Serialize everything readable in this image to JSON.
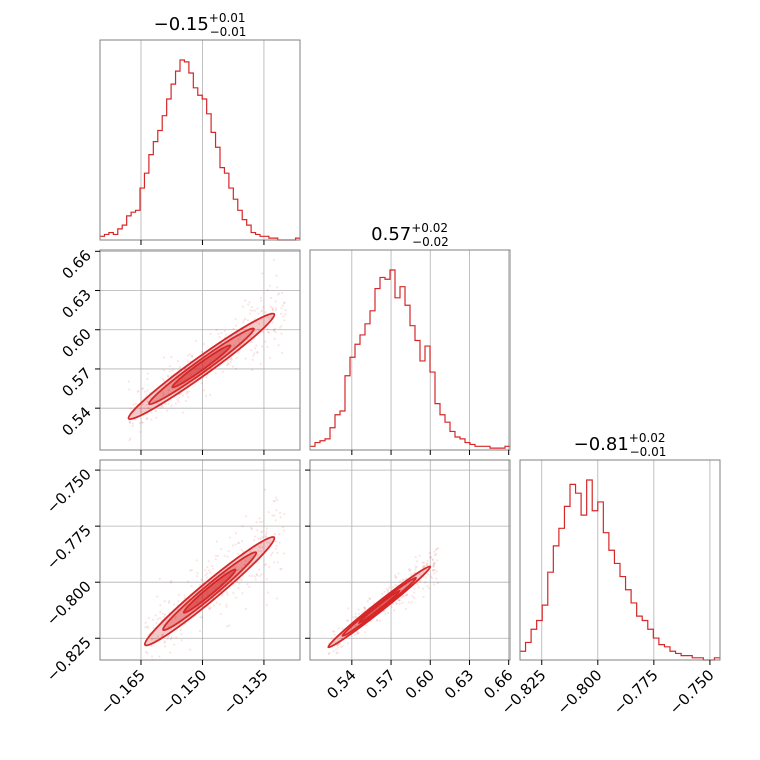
{
  "chart_data": {
    "type": "corner",
    "color": "#d62728",
    "grid": true,
    "parameters": [
      {
        "title_main": "−0.15",
        "title_sup": "+0.01",
        "title_sub": "−0.01",
        "range": [
          -0.175,
          -0.1262
        ],
        "ticks": [
          -0.165,
          -0.15,
          -0.135
        ],
        "tick_labels": [
          "−0.165",
          "−0.150",
          "−0.135"
        ],
        "hist": [
          0.02,
          0.03,
          0.04,
          0.03,
          0.06,
          0.08,
          0.13,
          0.15,
          0.16,
          0.28,
          0.36,
          0.46,
          0.53,
          0.59,
          0.67,
          0.76,
          0.84,
          0.91,
          0.97,
          0.96,
          0.9,
          0.82,
          0.78,
          0.76,
          0.68,
          0.58,
          0.5,
          0.39,
          0.36,
          0.28,
          0.22,
          0.16,
          0.11,
          0.08,
          0.04,
          0.03,
          0.02,
          0.02,
          0.01,
          0.01,
          0.0,
          0.0,
          0.0,
          0.0,
          0.01
        ]
      },
      {
        "title_main": "0.57",
        "title_sup": "+0.02",
        "title_sub": "−0.02",
        "range": [
          0.508,
          0.661
        ],
        "ticks": [
          0.54,
          0.57,
          0.6,
          0.63,
          0.66
        ],
        "tick_labels": [
          "0.54",
          "0.57",
          "0.60",
          "0.63",
          "0.66"
        ],
        "hist": [
          0.02,
          0.04,
          0.05,
          0.06,
          0.12,
          0.19,
          0.21,
          0.4,
          0.5,
          0.57,
          0.62,
          0.68,
          0.75,
          0.87,
          0.93,
          0.92,
          0.97,
          0.82,
          0.88,
          0.78,
          0.67,
          0.59,
          0.48,
          0.56,
          0.42,
          0.25,
          0.19,
          0.15,
          0.1,
          0.07,
          0.06,
          0.04,
          0.03,
          0.02,
          0.02,
          0.02,
          0.01,
          0.01,
          0.01,
          0.02
        ]
      },
      {
        "title_main": "−0.81",
        "title_sup": "+0.02",
        "title_sub": "−0.01",
        "range": [
          -0.8347,
          -0.7455
        ],
        "ticks": [
          -0.825,
          -0.8,
          -0.775,
          -0.75
        ],
        "tick_labels": [
          "−0.825",
          "−0.800",
          "−0.775",
          "−0.750"
        ],
        "hist": [
          0.04,
          0.08,
          0.14,
          0.18,
          0.25,
          0.4,
          0.52,
          0.6,
          0.7,
          0.8,
          0.76,
          0.66,
          0.82,
          0.68,
          0.72,
          0.58,
          0.5,
          0.44,
          0.38,
          0.32,
          0.26,
          0.2,
          0.18,
          0.14,
          0.1,
          0.07,
          0.06,
          0.04,
          0.03,
          0.02,
          0.02,
          0.01,
          0.01,
          0.0,
          0.0,
          0.01
        ]
      }
    ],
    "pairs": [
      {
        "x": 0,
        "y": 1,
        "start": [
          -0.168,
          0.532
        ],
        "end": [
          -0.1325,
          0.612
        ],
        "width_y": 0.008
      },
      {
        "x": 0,
        "y": 2,
        "start": [
          -0.164,
          -0.828
        ],
        "end": [
          -0.1325,
          -0.78
        ],
        "width_y": 0.006
      },
      {
        "x": 1,
        "y": 2,
        "start": [
          0.522,
          -0.829
        ],
        "end": [
          0.6,
          -0.793
        ],
        "width_y": 0.0025
      }
    ]
  }
}
